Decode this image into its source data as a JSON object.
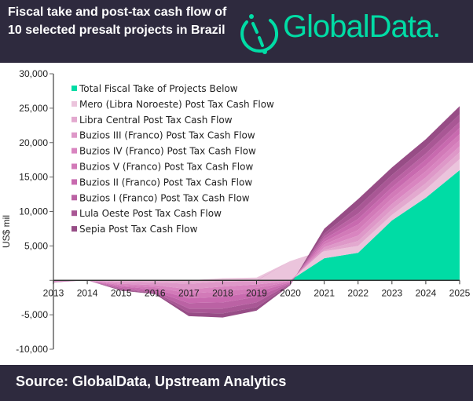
{
  "header": {
    "title": "Fiscal take and post-tax cash flow of 10 selected presalt projects in Brazil",
    "logo_text": "GlobalData."
  },
  "footer": {
    "source": "Source: GlobalData, Upstream Analytics"
  },
  "chart_data": {
    "type": "area",
    "stacked": true,
    "title": "Fiscal take and post-tax cash flow of 10 selected presalt projects in Brazil",
    "xlabel": "",
    "ylabel": "US$ mil",
    "ylim": [
      -10000,
      30000
    ],
    "yticks": [
      -10000,
      -5000,
      0,
      5000,
      10000,
      15000,
      20000,
      25000,
      30000
    ],
    "ytick_labels": [
      "-10,000",
      "-5,000",
      "",
      "5,000",
      "10,000",
      "15,000",
      "20,000",
      "25,000",
      "30,000"
    ],
    "x": [
      "2013",
      "2014",
      "2015",
      "2016",
      "2017",
      "2018",
      "2019",
      "2020",
      "2021",
      "2022",
      "2023",
      "2024",
      "2025"
    ],
    "legend_position": "top-left",
    "grid": false,
    "series": [
      {
        "name": "Total Fiscal Take of Projects Below",
        "color": "#00dca5",
        "values": [
          0,
          0,
          0,
          0,
          0,
          0,
          0,
          0,
          3200,
          4000,
          8700,
          12000,
          16000
        ]
      },
      {
        "name": "Mero (Libra Noroeste) Post Tax Cash Flow",
        "color": "#ebc4dc",
        "values": [
          0,
          0,
          0,
          0,
          0,
          300,
          400,
          2800,
          1000,
          1000,
          800,
          1200,
          1600
        ]
      },
      {
        "name": "Libra Central Post Tax Cash Flow",
        "color": "#e3a9cf",
        "values": [
          0,
          0,
          -200,
          -300,
          -500,
          -200,
          -100,
          0,
          200,
          700,
          800,
          900,
          1000
        ]
      },
      {
        "name": "Buzios III (Franco) Post Tax Cash Flow",
        "color": "#de98c8",
        "values": [
          -100,
          0,
          -300,
          -400,
          -800,
          -700,
          -500,
          -100,
          400,
          800,
          800,
          860,
          880
        ]
      },
      {
        "name": "Buzios IV (Franco) Post Tax Cash Flow",
        "color": "#d985c0",
        "values": [
          -50,
          0,
          -200,
          -300,
          -600,
          -700,
          -500,
          -100,
          400,
          800,
          800,
          860,
          880
        ]
      },
      {
        "name": "Buzios V (Franco) Post Tax Cash Flow",
        "color": "#d27ab8",
        "values": [
          -50,
          0,
          -200,
          -300,
          -700,
          -800,
          -600,
          -100,
          400,
          800,
          800,
          860,
          880
        ]
      },
      {
        "name": "Buzios II (Franco) Post Tax Cash Flow",
        "color": "#c86aaf",
        "values": [
          -50,
          0,
          -200,
          -300,
          -700,
          -800,
          -700,
          -100,
          400,
          800,
          800,
          860,
          880
        ]
      },
      {
        "name": "Buzios I (Franco) Post Tax Cash Flow",
        "color": "#bb62a4",
        "values": [
          0,
          0,
          -200,
          -200,
          -800,
          -900,
          -800,
          -100,
          400,
          800,
          800,
          860,
          880
        ]
      },
      {
        "name": "Lula Oeste Post Tax Cash Flow",
        "color": "#a95795",
        "values": [
          0,
          0,
          -100,
          -100,
          -600,
          -700,
          -700,
          -100,
          400,
          1000,
          1000,
          1000,
          1100
        ]
      },
      {
        "name": "Sepia Post Tax Cash Flow",
        "color": "#974d86",
        "values": [
          -50,
          0,
          -100,
          -100,
          -500,
          -600,
          -500,
          -100,
          700,
          1100,
          1100,
          1100,
          1200
        ]
      }
    ]
  }
}
